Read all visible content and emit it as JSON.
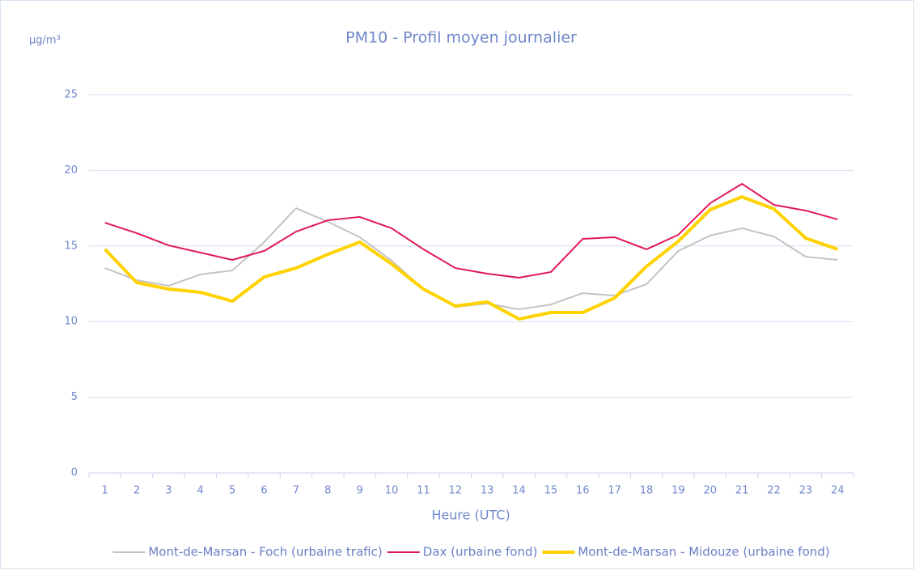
{
  "chart_data": {
    "type": "line",
    "title": "PM10 - Profil moyen journalier",
    "y_unit": "µg/m³",
    "x_label": "Heure (UTC)",
    "categories": [
      1,
      2,
      3,
      4,
      5,
      6,
      7,
      8,
      9,
      10,
      11,
      12,
      13,
      14,
      15,
      16,
      17,
      18,
      19,
      20,
      21,
      22,
      23,
      24
    ],
    "ylim": [
      0,
      25
    ],
    "yticks": [
      0,
      5,
      10,
      15,
      20,
      25
    ],
    "grid": true,
    "legend": "bottom",
    "series": [
      {
        "name": "Mont-de-Marsan - Foch (urbaine trafic)",
        "color": "#c3c3c3",
        "width": 2,
        "values": [
          13.54,
          12.74,
          12.37,
          13.12,
          13.38,
          15.26,
          17.5,
          16.6,
          15.58,
          14.03,
          12.15,
          10.97,
          11.19,
          10.81,
          11.13,
          11.88,
          11.72,
          12.47,
          14.67,
          15.69,
          16.17,
          15.63,
          14.29,
          14.08
        ]
      },
      {
        "name": "Dax (urbaine fond)",
        "color": "#e0185a",
        "width": 2,
        "values": [
          16.54,
          15.85,
          15.04,
          14.56,
          14.08,
          14.67,
          15.95,
          16.7,
          16.92,
          16.17,
          14.78,
          13.54,
          13.17,
          12.9,
          13.28,
          15.47,
          15.58,
          14.78,
          15.74,
          17.83,
          19.11,
          17.72,
          17.34,
          16.76
        ]
      },
      {
        "name": "Mont-de-Marsan - Midouze (urbaine fond)",
        "color": "#ffd200",
        "width": 4,
        "values": [
          14.78,
          12.58,
          12.15,
          11.94,
          11.35,
          12.95,
          13.54,
          14.45,
          15.26,
          13.81,
          12.15,
          11.03,
          11.3,
          10.17,
          10.6,
          10.6,
          11.56,
          13.65,
          15.31,
          17.4,
          18.25,
          17.45,
          15.52,
          14.78
        ]
      }
    ]
  }
}
